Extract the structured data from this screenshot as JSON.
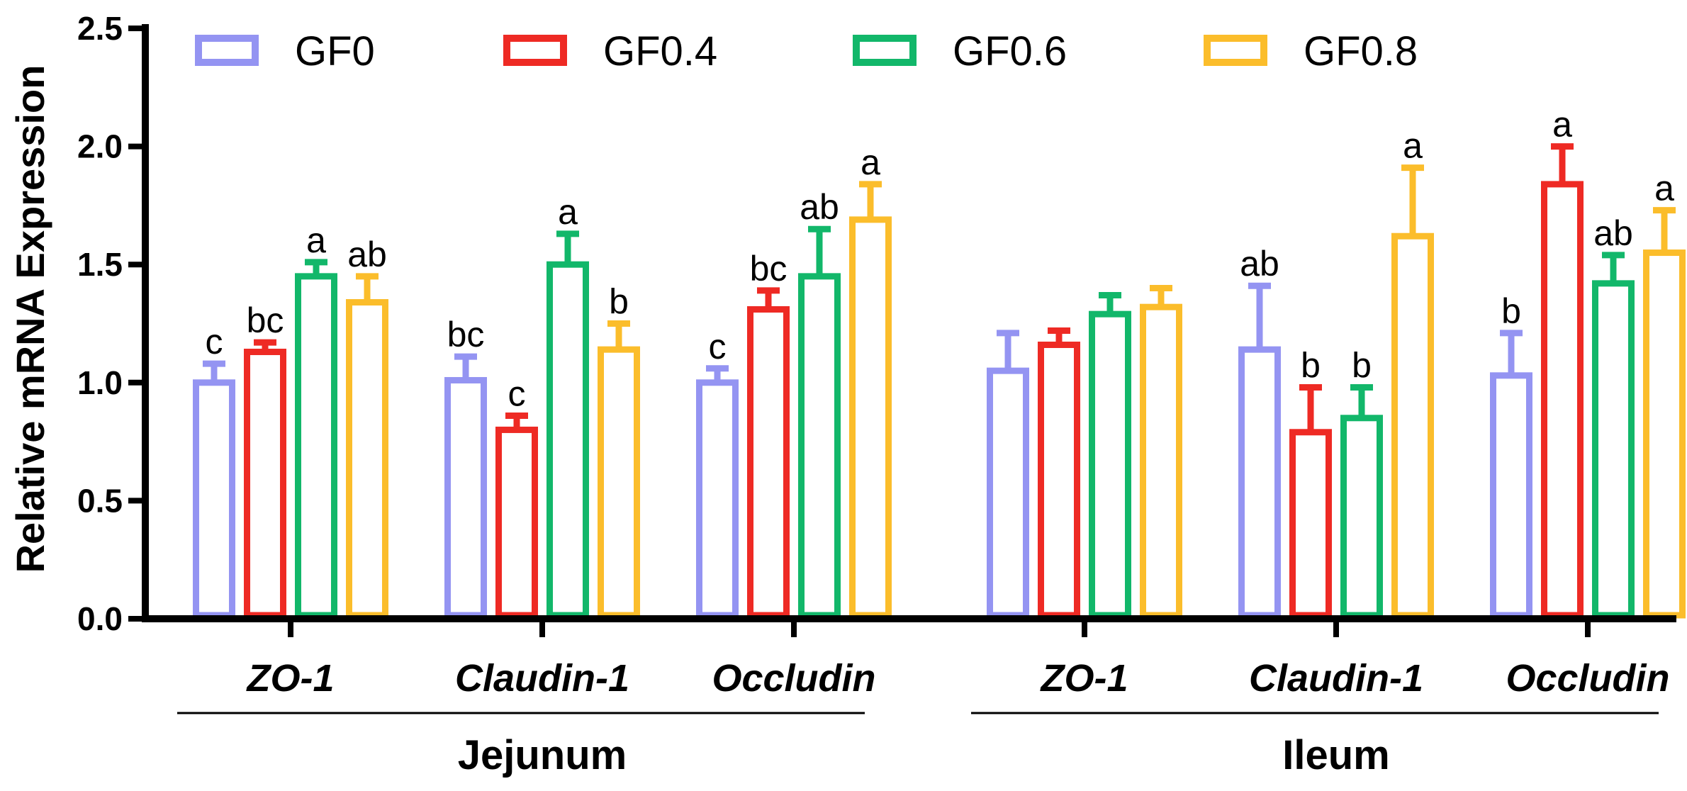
{
  "chart_data": {
    "type": "bar",
    "title": "",
    "ylabel": "Relative mRNA Expression",
    "xlabel": "",
    "ylim": [
      0,
      2.5
    ],
    "yticks": [
      "0.0",
      "0.5",
      "1.0",
      "1.5",
      "2.0",
      "2.5"
    ],
    "categories": [
      "ZO-1",
      "Claudin-1",
      "Occludin",
      "ZO-1",
      "Claudin-1",
      "Occludin"
    ],
    "groups": [
      {
        "name": "Jejunum",
        "categories": [
          0,
          1,
          2
        ]
      },
      {
        "name": "Ileum",
        "categories": [
          3,
          4,
          5
        ]
      }
    ],
    "series": [
      {
        "name": "GF0",
        "color": "#9494f2",
        "values": [
          1.0,
          1.01,
          1.0,
          1.05,
          1.14,
          1.03
        ],
        "errors": [
          0.08,
          0.1,
          0.06,
          0.16,
          0.27,
          0.18
        ],
        "labels": [
          "c",
          "bc",
          "c",
          "",
          "ab",
          "b"
        ]
      },
      {
        "name": "GF0.4",
        "color": "#ee2a24",
        "values": [
          1.13,
          0.8,
          1.31,
          1.16,
          0.79,
          1.84
        ],
        "errors": [
          0.04,
          0.06,
          0.08,
          0.06,
          0.19,
          0.16
        ],
        "labels": [
          "bc",
          "c",
          "bc",
          "",
          "b",
          "a"
        ]
      },
      {
        "name": "GF0.6",
        "color": "#12b76a",
        "values": [
          1.45,
          1.5,
          1.45,
          1.29,
          0.85,
          1.42
        ],
        "errors": [
          0.06,
          0.13,
          0.2,
          0.08,
          0.13,
          0.12
        ],
        "labels": [
          "a",
          "a",
          "ab",
          "",
          "b",
          "ab"
        ]
      },
      {
        "name": "GF0.8",
        "color": "#fbbd2b",
        "values": [
          1.34,
          1.14,
          1.69,
          1.32,
          1.62,
          1.55
        ],
        "errors": [
          0.11,
          0.11,
          0.15,
          0.08,
          0.29,
          0.18
        ],
        "labels": [
          "ab",
          "b",
          "a",
          "",
          "a",
          "a"
        ]
      }
    ],
    "legend_position": "top"
  }
}
